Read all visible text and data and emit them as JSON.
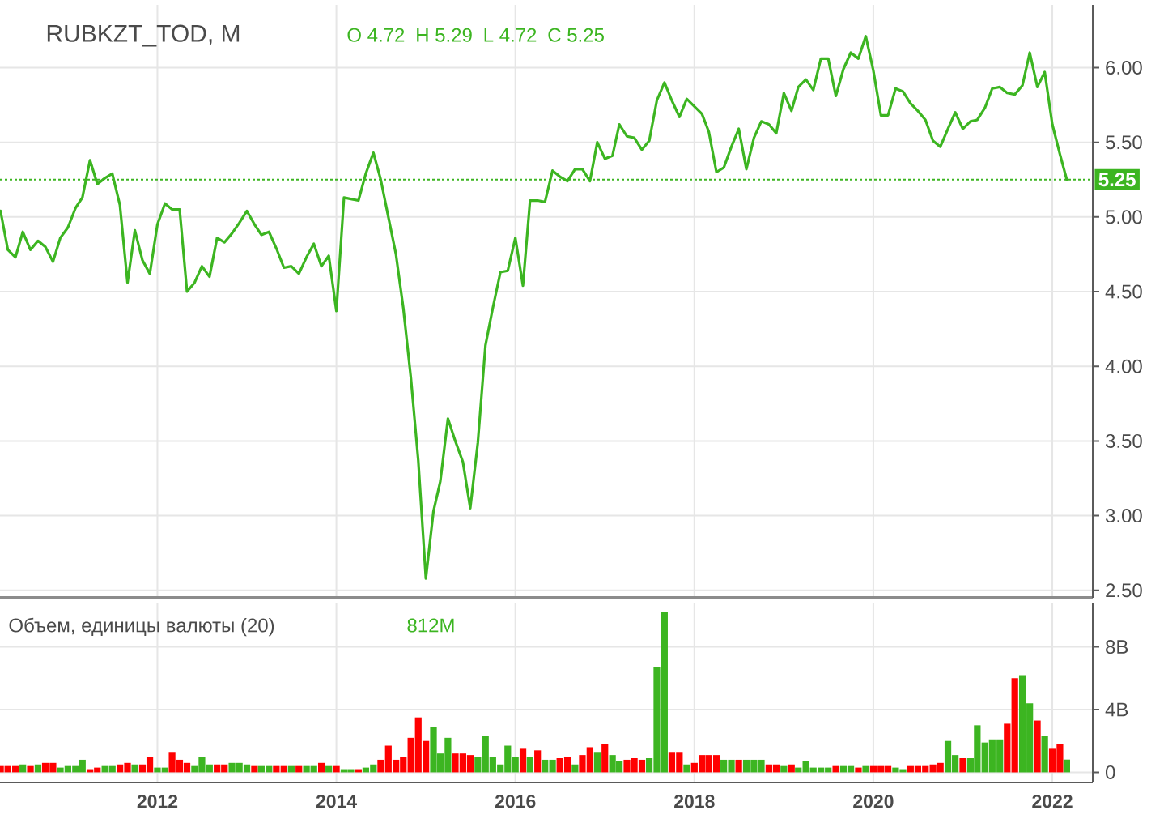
{
  "chart_data": [
    {
      "type": "line",
      "title": "RUBKZT_TOD, M",
      "annotations": [
        "O 4.72",
        "H 5.29",
        "L 4.72",
        "C 5.25"
      ],
      "x": [
        "2010-04",
        "2010-05",
        "2010-06",
        "2010-07",
        "2010-08",
        "2010-09",
        "2010-10",
        "2010-11",
        "2010-12",
        "2011-01",
        "2011-02",
        "2011-03",
        "2011-04",
        "2011-05",
        "2011-06",
        "2011-07",
        "2011-08",
        "2011-09",
        "2011-10",
        "2011-11",
        "2011-12",
        "2012-01",
        "2012-02",
        "2012-03",
        "2012-04",
        "2012-05",
        "2012-06",
        "2012-07",
        "2012-08",
        "2012-09",
        "2012-10",
        "2012-11",
        "2012-12",
        "2013-01",
        "2013-02",
        "2013-03",
        "2013-04",
        "2013-05",
        "2013-06",
        "2013-07",
        "2013-08",
        "2013-09",
        "2013-10",
        "2013-11",
        "2013-12",
        "2014-01",
        "2014-02",
        "2014-03",
        "2014-04",
        "2014-05",
        "2014-06",
        "2014-07",
        "2014-08",
        "2014-09",
        "2014-10",
        "2014-11",
        "2014-12",
        "2015-01",
        "2015-02",
        "2015-03",
        "2015-04",
        "2015-05",
        "2015-06",
        "2015-07",
        "2015-08",
        "2015-09",
        "2015-10",
        "2015-11",
        "2015-12",
        "2016-01",
        "2016-02",
        "2016-03",
        "2016-04",
        "2016-05",
        "2016-06",
        "2016-07",
        "2016-08",
        "2016-09",
        "2016-10",
        "2016-11",
        "2016-12",
        "2017-01",
        "2017-02",
        "2017-03",
        "2017-04",
        "2017-05",
        "2017-06",
        "2017-07",
        "2017-08",
        "2017-09",
        "2017-10",
        "2017-11",
        "2017-12",
        "2018-01",
        "2018-02",
        "2018-03",
        "2018-04",
        "2018-05",
        "2018-06",
        "2018-07",
        "2018-08",
        "2018-09",
        "2018-10",
        "2018-11",
        "2018-12",
        "2019-01",
        "2019-02",
        "2019-03",
        "2019-04",
        "2019-05",
        "2019-06",
        "2019-07",
        "2019-08",
        "2019-09",
        "2019-10",
        "2019-11",
        "2019-12",
        "2020-01",
        "2020-02",
        "2020-03",
        "2020-04",
        "2020-05",
        "2020-06",
        "2020-07",
        "2020-08",
        "2020-09",
        "2020-10",
        "2020-11",
        "2020-12",
        "2021-01",
        "2021-02",
        "2021-03",
        "2021-04",
        "2021-05",
        "2021-06",
        "2021-07",
        "2021-08",
        "2021-09",
        "2021-10",
        "2021-11",
        "2021-12",
        "2022-01",
        "2022-02",
        "2022-03"
      ],
      "series": [
        {
          "color": "#3cb521",
          "values": [
            5.04,
            4.78,
            4.73,
            4.9,
            4.78,
            4.84,
            4.8,
            4.7,
            4.86,
            4.93,
            5.06,
            5.13,
            5.38,
            5.22,
            5.26,
            5.29,
            5.08,
            4.56,
            4.91,
            4.71,
            4.62,
            4.95,
            5.09,
            5.05,
            5.05,
            4.5,
            4.56,
            4.67,
            4.6,
            4.86,
            4.83,
            4.89,
            4.96,
            5.04,
            4.95,
            4.88,
            4.9,
            4.79,
            4.66,
            4.67,
            4.62,
            4.73,
            4.82,
            4.67,
            4.74,
            4.37,
            5.13,
            5.12,
            5.11,
            5.29,
            5.43,
            5.25,
            5.0,
            4.75,
            4.39,
            3.92,
            3.37,
            2.58,
            3.03,
            3.23,
            3.65,
            3.5,
            3.36,
            3.05,
            3.49,
            4.14,
            4.39,
            4.63,
            4.64,
            4.86,
            4.54,
            5.11,
            5.11,
            5.1,
            5.31,
            5.27,
            5.24,
            5.32,
            5.32,
            5.24,
            5.5,
            5.39,
            5.41,
            5.62,
            5.54,
            5.53,
            5.45,
            5.51,
            5.78,
            5.9,
            5.78,
            5.67,
            5.79,
            5.74,
            5.69,
            5.57,
            5.3,
            5.33,
            5.47,
            5.59,
            5.32,
            5.53,
            5.64,
            5.62,
            5.56,
            5.83,
            5.71,
            5.87,
            5.92,
            5.85,
            6.06,
            6.06,
            5.81,
            5.99,
            6.1,
            6.06,
            6.21,
            5.98,
            5.68,
            5.68,
            5.86,
            5.84,
            5.76,
            5.71,
            5.65,
            5.51,
            5.47,
            5.59,
            5.7,
            5.59,
            5.64,
            5.65,
            5.73,
            5.86,
            5.87,
            5.83,
            5.82,
            5.88,
            6.1,
            5.87,
            5.97,
            5.62,
            5.42,
            5.25
          ]
        }
      ],
      "xlim": [
        "2010-03-30",
        "2022-06-15"
      ],
      "ylim": [
        2.45,
        6.42
      ],
      "xticks": [
        "2012",
        "2014",
        "2016",
        "2018",
        "2020",
        "2022"
      ],
      "yticks": [
        {
          "value": 2.5,
          "label": "2.50"
        },
        {
          "value": 3,
          "label": "3.00"
        },
        {
          "value": 3.5,
          "label": "3.50"
        },
        {
          "value": 4,
          "label": "4.00"
        },
        {
          "value": 4.5,
          "label": "4.50"
        },
        {
          "value": 5,
          "label": "5.00"
        },
        {
          "value": 5.5,
          "label": "5.50"
        },
        {
          "value": 6,
          "label": "6.00"
        }
      ],
      "grid": true,
      "tick_labels": "y",
      "ref_lines": [
        {
          "axis": "y",
          "value": 5.25,
          "label": "5.25",
          "color": "#3cb521",
          "line_style": "dotted"
        }
      ]
    },
    {
      "type": "bar",
      "title": "Объем, единицы валюты (20)",
      "annotations": [
        "812M"
      ],
      "x": [
        "2010-04",
        "2010-05",
        "2010-06",
        "2010-07",
        "2010-08",
        "2010-09",
        "2010-10",
        "2010-11",
        "2010-12",
        "2011-01",
        "2011-02",
        "2011-03",
        "2011-04",
        "2011-05",
        "2011-06",
        "2011-07",
        "2011-08",
        "2011-09",
        "2011-10",
        "2011-11",
        "2011-12",
        "2012-01",
        "2012-02",
        "2012-03",
        "2012-04",
        "2012-05",
        "2012-06",
        "2012-07",
        "2012-08",
        "2012-09",
        "2012-10",
        "2012-11",
        "2012-12",
        "2013-01",
        "2013-02",
        "2013-03",
        "2013-04",
        "2013-05",
        "2013-06",
        "2013-07",
        "2013-08",
        "2013-09",
        "2013-10",
        "2013-11",
        "2013-12",
        "2014-01",
        "2014-02",
        "2014-03",
        "2014-04",
        "2014-05",
        "2014-06",
        "2014-07",
        "2014-08",
        "2014-09",
        "2014-10",
        "2014-11",
        "2014-12",
        "2015-01",
        "2015-02",
        "2015-03",
        "2015-04",
        "2015-05",
        "2015-06",
        "2015-07",
        "2015-08",
        "2015-09",
        "2015-10",
        "2015-11",
        "2015-12",
        "2016-01",
        "2016-02",
        "2016-03",
        "2016-04",
        "2016-05",
        "2016-06",
        "2016-07",
        "2016-08",
        "2016-09",
        "2016-10",
        "2016-11",
        "2016-12",
        "2017-01",
        "2017-02",
        "2017-03",
        "2017-04",
        "2017-05",
        "2017-06",
        "2017-07",
        "2017-08",
        "2017-09",
        "2017-10",
        "2017-11",
        "2017-12",
        "2018-01",
        "2018-02",
        "2018-03",
        "2018-04",
        "2018-05",
        "2018-06",
        "2018-07",
        "2018-08",
        "2018-09",
        "2018-10",
        "2018-11",
        "2018-12",
        "2019-01",
        "2019-02",
        "2019-03",
        "2019-04",
        "2019-05",
        "2019-06",
        "2019-07",
        "2019-08",
        "2019-09",
        "2019-10",
        "2019-11",
        "2019-12",
        "2020-01",
        "2020-02",
        "2020-03",
        "2020-04",
        "2020-05",
        "2020-06",
        "2020-07",
        "2020-08",
        "2020-09",
        "2020-10",
        "2020-11",
        "2020-12",
        "2021-01",
        "2021-02",
        "2021-03",
        "2021-04",
        "2021-05",
        "2021-06",
        "2021-07",
        "2021-08",
        "2021-09",
        "2021-10",
        "2021-11",
        "2021-12",
        "2022-01",
        "2022-02",
        "2022-03"
      ],
      "values": [
        0.4,
        0.4,
        0.4,
        0.5,
        0.4,
        0.5,
        0.6,
        0.6,
        0.3,
        0.4,
        0.4,
        0.8,
        0.2,
        0.3,
        0.4,
        0.4,
        0.5,
        0.6,
        0.5,
        0.5,
        1.0,
        0.3,
        0.3,
        1.3,
        0.8,
        0.6,
        0.4,
        1.0,
        0.5,
        0.5,
        0.5,
        0.6,
        0.6,
        0.5,
        0.4,
        0.4,
        0.4,
        0.4,
        0.4,
        0.4,
        0.4,
        0.4,
        0.4,
        0.6,
        0.4,
        0.4,
        0.2,
        0.2,
        0.2,
        0.3,
        0.5,
        0.8,
        1.7,
        0.8,
        1.0,
        2.2,
        3.5,
        2.0,
        2.9,
        1.2,
        2.2,
        1.2,
        1.2,
        1.1,
        1.0,
        2.3,
        1.0,
        0.5,
        1.7,
        1.0,
        1.5,
        1.0,
        1.4,
        0.8,
        0.8,
        0.9,
        1.0,
        0.5,
        1.1,
        1.6,
        1.3,
        1.8,
        1.1,
        0.7,
        0.8,
        0.9,
        0.8,
        0.9,
        6.7,
        10.2,
        1.3,
        1.3,
        0.5,
        0.6,
        1.1,
        1.1,
        1.1,
        0.8,
        0.8,
        0.8,
        0.8,
        0.8,
        0.8,
        0.5,
        0.5,
        0.4,
        0.5,
        0.3,
        0.7,
        0.3,
        0.3,
        0.3,
        0.4,
        0.4,
        0.4,
        0.3,
        0.4,
        0.4,
        0.4,
        0.4,
        0.3,
        0.2,
        0.4,
        0.4,
        0.4,
        0.5,
        0.6,
        2.0,
        1.1,
        0.9,
        0.9,
        3.0,
        1.9,
        2.1,
        2.1,
        3.1,
        6.0,
        6.2,
        4.4,
        3.3,
        2.3,
        1.5,
        1.8,
        0.812
      ],
      "colors": [
        "#ff0000",
        "#ff0000",
        "#ff0000",
        "#3cb521",
        "#ff0000",
        "#3cb521",
        "#ff0000",
        "#ff0000",
        "#3cb521",
        "#3cb521",
        "#3cb521",
        "#3cb521",
        "#ff0000",
        "#ff0000",
        "#3cb521",
        "#3cb521",
        "#ff0000",
        "#ff0000",
        "#3cb521",
        "#ff0000",
        "#ff0000",
        "#3cb521",
        "#3cb521",
        "#ff0000",
        "#ff0000",
        "#ff0000",
        "#3cb521",
        "#3cb521",
        "#3cb521",
        "#ff0000",
        "#ff0000",
        "#3cb521",
        "#3cb521",
        "#3cb521",
        "#ff0000",
        "#3cb521",
        "#3cb521",
        "#ff0000",
        "#ff0000",
        "#3cb521",
        "#ff0000",
        "#3cb521",
        "#3cb521",
        "#ff0000",
        "#3cb521",
        "#ff0000",
        "#3cb521",
        "#3cb521",
        "#ff0000",
        "#3cb521",
        "#3cb521",
        "#ff0000",
        "#ff0000",
        "#ff0000",
        "#ff0000",
        "#ff0000",
        "#ff0000",
        "#ff0000",
        "#3cb521",
        "#3cb521",
        "#3cb521",
        "#ff0000",
        "#ff0000",
        "#ff0000",
        "#3cb521",
        "#3cb521",
        "#3cb521",
        "#3cb521",
        "#3cb521",
        "#3cb521",
        "#ff0000",
        "#3cb521",
        "#ff0000",
        "#3cb521",
        "#3cb521",
        "#ff0000",
        "#ff0000",
        "#3cb521",
        "#ff0000",
        "#ff0000",
        "#3cb521",
        "#ff0000",
        "#3cb521",
        "#3cb521",
        "#ff0000",
        "#ff0000",
        "#ff0000",
        "#3cb521",
        "#3cb521",
        "#3cb521",
        "#ff0000",
        "#ff0000",
        "#3cb521",
        "#ff0000",
        "#ff0000",
        "#ff0000",
        "#ff0000",
        "#3cb521",
        "#3cb521",
        "#ff0000",
        "#3cb521",
        "#3cb521",
        "#3cb521",
        "#ff0000",
        "#ff0000",
        "#3cb521",
        "#ff0000",
        "#3cb521",
        "#3cb521",
        "#3cb521",
        "#3cb521",
        "#3cb521",
        "#ff0000",
        "#3cb521",
        "#3cb521",
        "#ff0000",
        "#3cb521",
        "#ff0000",
        "#ff0000",
        "#ff0000",
        "#3cb521",
        "#3cb521",
        "#ff0000",
        "#ff0000",
        "#ff0000",
        "#ff0000",
        "#ff0000",
        "#3cb521",
        "#3cb521",
        "#ff0000",
        "#3cb521",
        "#3cb521",
        "#3cb521",
        "#3cb521",
        "#3cb521",
        "#ff0000",
        "#ff0000",
        "#3cb521",
        "#3cb521",
        "#ff0000",
        "#3cb521",
        "#ff0000",
        "#ff0000",
        "#3cb521"
      ],
      "xlim": [
        "2010-03-30",
        "2022-06-15"
      ],
      "ylim": [
        -0.65,
        10.82
      ],
      "xticks": [
        "2012",
        "2014",
        "2016",
        "2018",
        "2020",
        "2022"
      ],
      "yticks": [
        0,
        {
          "value": 4,
          "label": "4B"
        },
        {
          "value": 8,
          "label": "8B"
        }
      ],
      "grid": true
    }
  ]
}
